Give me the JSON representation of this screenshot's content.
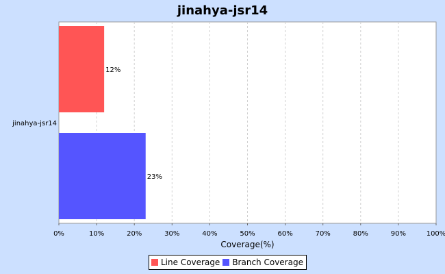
{
  "chart_data": {
    "type": "bar",
    "orientation": "horizontal",
    "title": "jinahya-jsr14",
    "categories": [
      "jinahya-jsr14"
    ],
    "series": [
      {
        "name": "Line Coverage",
        "values": [
          12
        ],
        "label": "12%",
        "color": "#ff5555"
      },
      {
        "name": "Branch Coverage",
        "values": [
          23
        ],
        "label": "23%",
        "color": "#5555ff"
      }
    ],
    "xlabel": "Coverage(%)",
    "ylabel": "",
    "xlim": [
      0,
      100
    ],
    "x_ticks": [
      "0%",
      "10%",
      "20%",
      "30%",
      "40%",
      "50%",
      "60%",
      "70%",
      "80%",
      "90%",
      "100%"
    ],
    "grid": true,
    "legend_position": "bottom"
  }
}
